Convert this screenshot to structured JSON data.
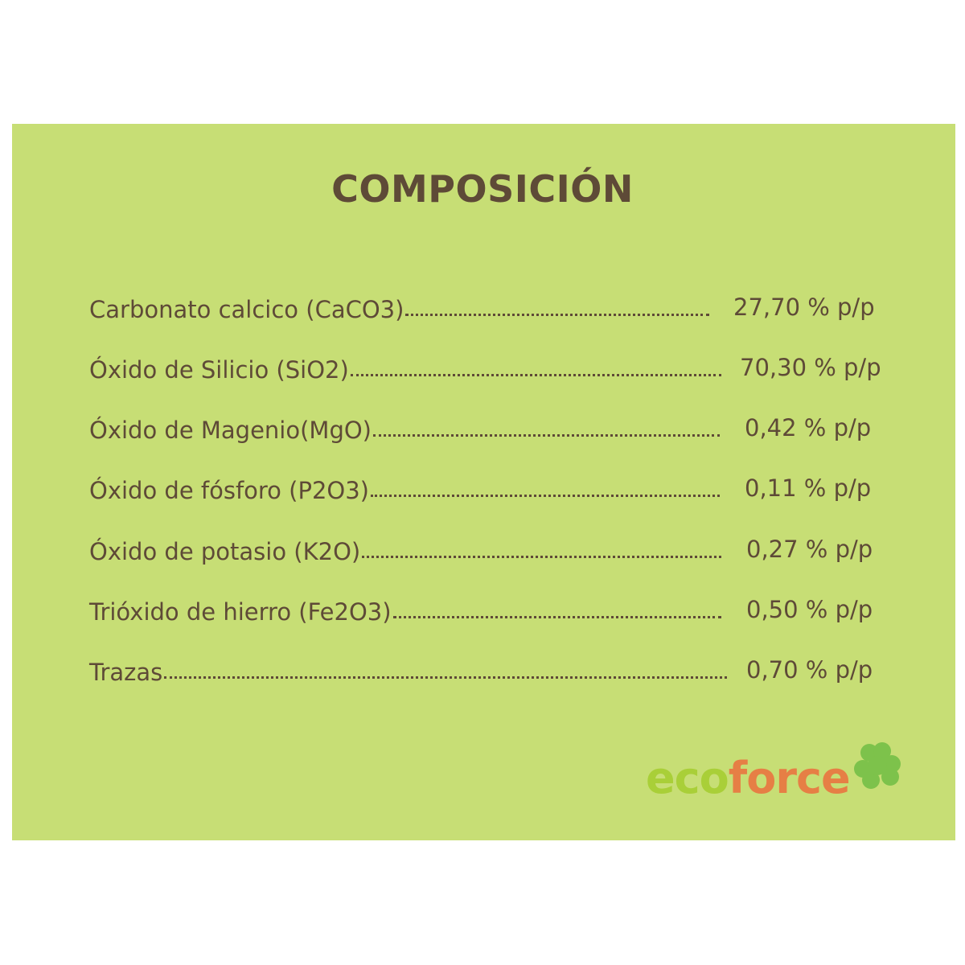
{
  "title": "COMPOSICIÓN",
  "items": [
    {
      "name": "Carbonato calcico (CaCO3)",
      "value": "27,70 % p/p"
    },
    {
      "name": "Óxido de Silicio (SiO2)",
      "value": "70,30 % p/p"
    },
    {
      "name": "Óxido de Magenio(MgO)",
      "value": "0,42 % p/p"
    },
    {
      "name": "Óxido de fósforo (P2O3)",
      "value": "0,11 % p/p"
    },
    {
      "name": "Óxido de potasio (K2O)",
      "value": "0,27 % p/p"
    },
    {
      "name": "Trióxido de hierro (Fe2O3)",
      "value": "0,50 % p/p"
    },
    {
      "name": "Trazas ",
      "value": "0,70 % p/p"
    }
  ],
  "logo": {
    "part1": "eco",
    "part2": "force",
    "icon": "clover-icon"
  },
  "colors": {
    "background": "#c7de75",
    "text": "#5e4a37",
    "eco": "#a9cf38",
    "force": "#e67f45",
    "clover": "#7dc24b"
  }
}
